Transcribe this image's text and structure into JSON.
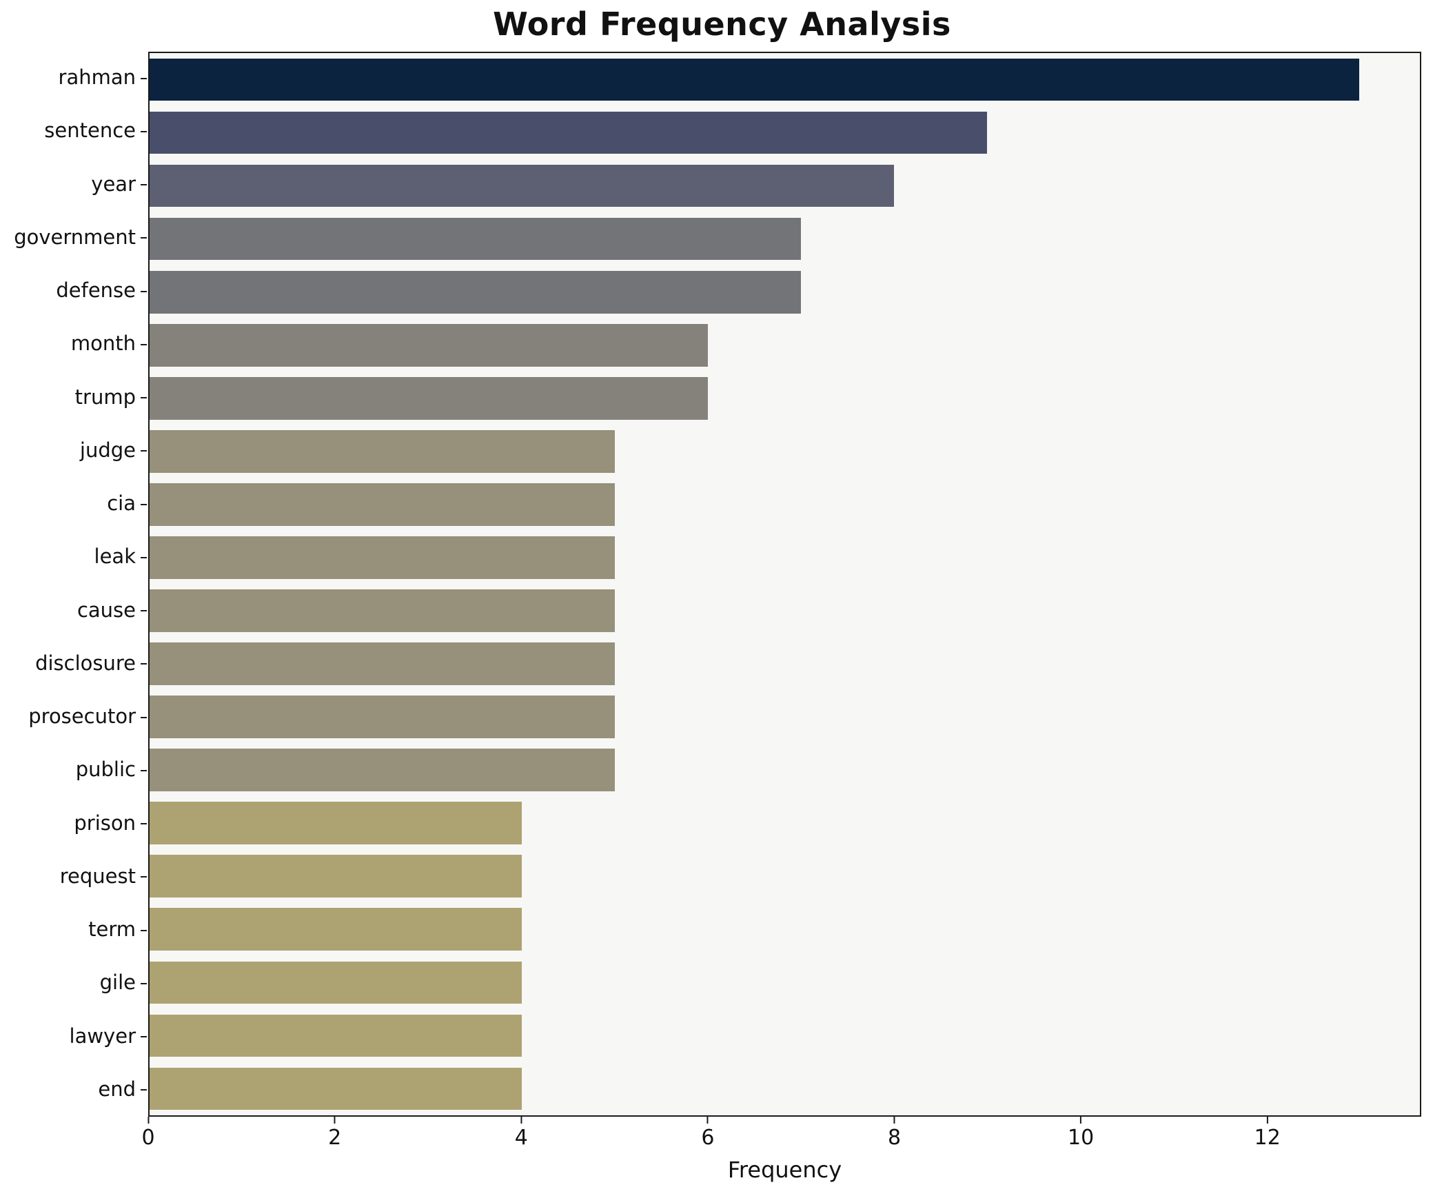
{
  "chart_data": {
    "type": "bar",
    "orientation": "horizontal",
    "title": "Word Frequency Analysis",
    "xlabel": "Frequency",
    "ylabel": "",
    "xlim": [
      0,
      13.65
    ],
    "xticks": [
      0,
      2,
      4,
      6,
      8,
      10,
      12
    ],
    "grid": false,
    "legend": null,
    "plot_background": "#f7f7f6",
    "categories": [
      "rahman",
      "sentence",
      "year",
      "government",
      "defense",
      "month",
      "trump",
      "judge",
      "cia",
      "leak",
      "cause",
      "disclosure",
      "prosecutor",
      "public",
      "prison",
      "request",
      "term",
      "gile",
      "lawyer",
      "end"
    ],
    "values": [
      13,
      9,
      8,
      7,
      7,
      6,
      6,
      5,
      5,
      5,
      5,
      5,
      5,
      5,
      4,
      4,
      4,
      4,
      4,
      4
    ],
    "bar_colors": [
      "#0c2340",
      "#494f6b",
      "#5d5f72",
      "#737478",
      "#737478",
      "#85827b",
      "#85827b",
      "#97907a",
      "#97907a",
      "#97907a",
      "#97907a",
      "#97907a",
      "#97907a",
      "#97907a",
      "#ada271",
      "#ada271",
      "#ada271",
      "#ada271",
      "#ada271",
      "#ada271"
    ]
  }
}
